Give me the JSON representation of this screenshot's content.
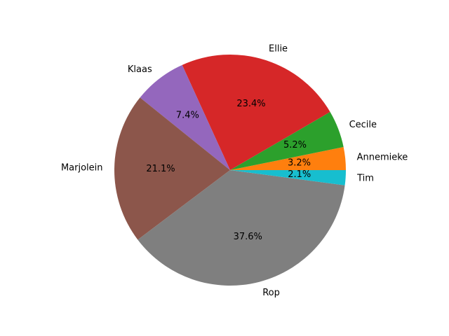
{
  "chart_data": {
    "type": "pie",
    "title": "",
    "start_angle_deg": 0,
    "direction": "counterclockwise",
    "legend": "none",
    "slices": [
      {
        "label": "Annemieke",
        "value": 3.2,
        "pct_label": "3.2%",
        "color": "#ff7f0e"
      },
      {
        "label": "Cecile",
        "value": 5.2,
        "pct_label": "5.2%",
        "color": "#2ca02c"
      },
      {
        "label": "Ellie",
        "value": 23.4,
        "pct_label": "23.4%",
        "color": "#d62728"
      },
      {
        "label": "Klaas",
        "value": 7.4,
        "pct_label": "7.4%",
        "color": "#9467bd"
      },
      {
        "label": "Marjolein",
        "value": 21.1,
        "pct_label": "21.1%",
        "color": "#8c564b"
      },
      {
        "label": "Rop",
        "value": 37.6,
        "pct_label": "37.6%",
        "color": "#7f7f7f"
      },
      {
        "label": "Tim",
        "value": 2.1,
        "pct_label": "2.1%",
        "color": "#17becf"
      }
    ]
  }
}
